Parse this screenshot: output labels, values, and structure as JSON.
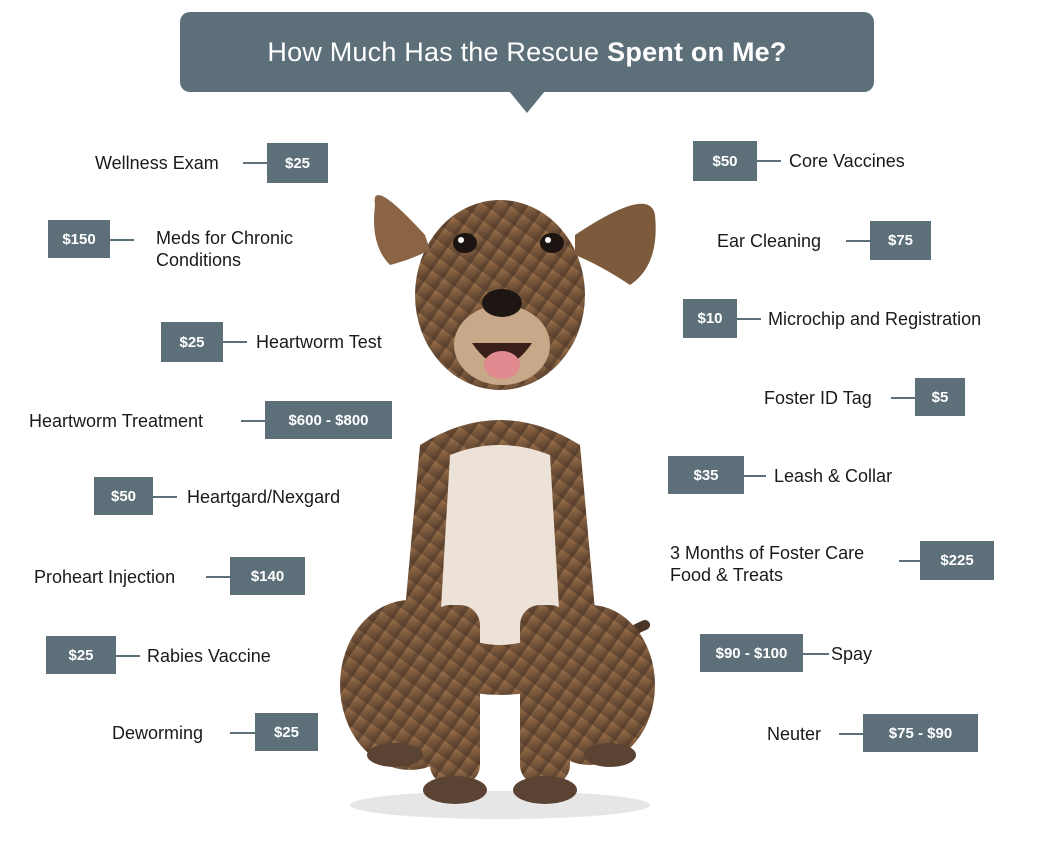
{
  "title": {
    "regular": "How Much Has the Rescue",
    "bold": "Spent on Me?"
  },
  "left_items": [
    {
      "label": "Wellness Exam",
      "price": "$25"
    },
    {
      "label": "Meds for Chronic Conditions",
      "price": "$150"
    },
    {
      "label": "Heartworm Test",
      "price": "$25"
    },
    {
      "label": "Heartworm Treatment",
      "price": "$600 - $800"
    },
    {
      "label": "Heartgard/Nexgard",
      "price": "$50"
    },
    {
      "label": "Proheart Injection",
      "price": "$140"
    },
    {
      "label": "Rabies Vaccine",
      "price": "$25"
    },
    {
      "label": "Deworming",
      "price": "$25"
    }
  ],
  "right_items": [
    {
      "label": "Core Vaccines",
      "price": "$50"
    },
    {
      "label": "Ear Cleaning",
      "price": "$75"
    },
    {
      "label": "Microchip and Registration",
      "price": "$10"
    },
    {
      "label": "Foster ID Tag",
      "price": "$5"
    },
    {
      "label": "Leash & Collar",
      "price": "$35"
    },
    {
      "label": "3 Months of Foster Care Food & Treats",
      "price": "$225"
    },
    {
      "label": "Spay",
      "price": "$90 - $100"
    },
    {
      "label": "Neuter",
      "price": "$75 - $90"
    }
  ],
  "colors": {
    "accent": "#5d7079",
    "text": "#1a1a1a",
    "background": "#ffffff"
  },
  "image": {
    "subject": "puppy-photo"
  }
}
